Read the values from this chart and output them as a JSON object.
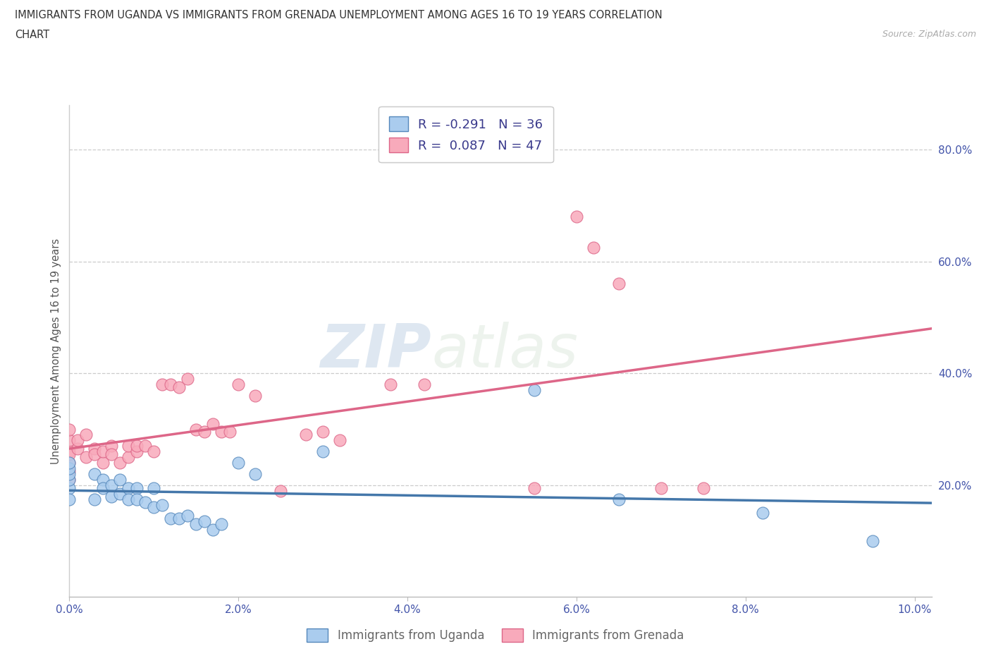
{
  "title_line1": "IMMIGRANTS FROM UGANDA VS IMMIGRANTS FROM GRENADA UNEMPLOYMENT AMONG AGES 16 TO 19 YEARS CORRELATION",
  "title_line2": "CHART",
  "source_text": "Source: ZipAtlas.com",
  "ylabel": "Unemployment Among Ages 16 to 19 years",
  "xlim": [
    0.0,
    0.102
  ],
  "ylim": [
    0.0,
    0.88
  ],
  "xticks": [
    0.0,
    0.02,
    0.04,
    0.06,
    0.08,
    0.1
  ],
  "xtick_labels": [
    "0.0%",
    "2.0%",
    "4.0%",
    "6.0%",
    "8.0%",
    "10.0%"
  ],
  "ytick_right_values": [
    0.2,
    0.4,
    0.6,
    0.8
  ],
  "ytick_right_labels": [
    "20.0%",
    "40.0%",
    "60.0%",
    "80.0%"
  ],
  "uganda_face_color": "#aaccee",
  "uganda_edge_color": "#5588bb",
  "grenada_face_color": "#f8aabb",
  "grenada_edge_color": "#dd6688",
  "uganda_line_color": "#4477aa",
  "grenada_line_color": "#dd6688",
  "R_uganda": -0.291,
  "N_uganda": 36,
  "R_grenada": 0.087,
  "N_grenada": 47,
  "legend_label_uganda": "Immigrants from Uganda",
  "legend_label_grenada": "Immigrants from Grenada",
  "watermark_zip": "ZIP",
  "watermark_atlas": "atlas",
  "uganda_x": [
    0.0,
    0.0,
    0.0,
    0.0,
    0.0,
    0.0,
    0.003,
    0.003,
    0.004,
    0.004,
    0.005,
    0.005,
    0.006,
    0.006,
    0.007,
    0.007,
    0.008,
    0.008,
    0.009,
    0.01,
    0.01,
    0.011,
    0.012,
    0.013,
    0.014,
    0.015,
    0.016,
    0.017,
    0.018,
    0.02,
    0.022,
    0.03,
    0.055,
    0.065,
    0.082,
    0.095
  ],
  "uganda_y": [
    0.195,
    0.21,
    0.22,
    0.23,
    0.24,
    0.175,
    0.22,
    0.175,
    0.21,
    0.195,
    0.18,
    0.2,
    0.21,
    0.185,
    0.195,
    0.175,
    0.195,
    0.175,
    0.17,
    0.195,
    0.16,
    0.165,
    0.14,
    0.14,
    0.145,
    0.13,
    0.135,
    0.12,
    0.13,
    0.24,
    0.22,
    0.26,
    0.37,
    0.175,
    0.15,
    0.1
  ],
  "grenada_x": [
    0.0,
    0.0,
    0.0,
    0.0,
    0.0,
    0.0,
    0.0,
    0.001,
    0.001,
    0.002,
    0.002,
    0.003,
    0.003,
    0.004,
    0.004,
    0.005,
    0.005,
    0.006,
    0.007,
    0.007,
    0.008,
    0.008,
    0.009,
    0.01,
    0.011,
    0.012,
    0.013,
    0.014,
    0.015,
    0.016,
    0.017,
    0.018,
    0.019,
    0.02,
    0.022,
    0.025,
    0.028,
    0.03,
    0.032,
    0.038,
    0.042,
    0.055,
    0.06,
    0.062,
    0.065,
    0.07,
    0.075
  ],
  "grenada_y": [
    0.26,
    0.28,
    0.3,
    0.24,
    0.255,
    0.225,
    0.21,
    0.265,
    0.28,
    0.29,
    0.25,
    0.265,
    0.255,
    0.24,
    0.26,
    0.27,
    0.255,
    0.24,
    0.25,
    0.27,
    0.26,
    0.27,
    0.27,
    0.26,
    0.38,
    0.38,
    0.375,
    0.39,
    0.3,
    0.295,
    0.31,
    0.295,
    0.295,
    0.38,
    0.36,
    0.19,
    0.29,
    0.295,
    0.28,
    0.38,
    0.38,
    0.195,
    0.68,
    0.625,
    0.56,
    0.195,
    0.195
  ]
}
